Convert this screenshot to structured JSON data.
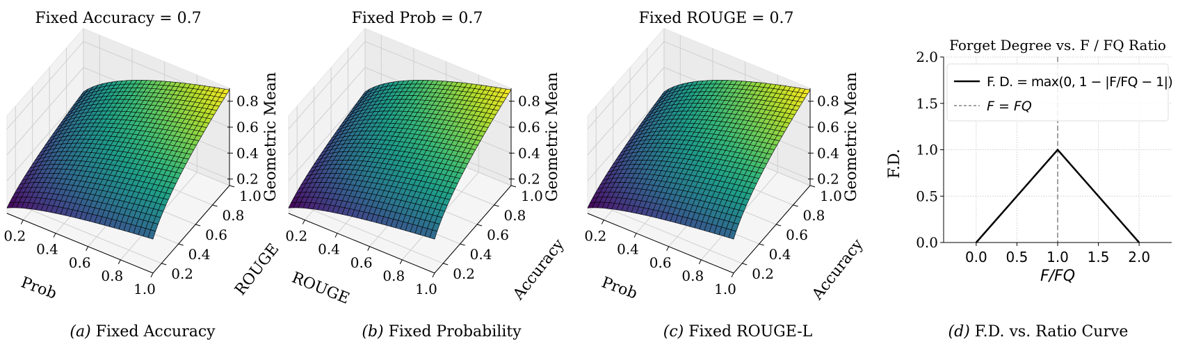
{
  "chart_data": [
    {
      "type": "surface",
      "title": "Fixed Accuracy = 0.7",
      "fixed_value": 0.7,
      "caption_prefix": "(a)",
      "caption": "Fixed Accuracy",
      "xlabel": "Prob",
      "ylabel": "ROUGE",
      "zlabel": "Geometric Mean",
      "xlim": [
        0.1,
        1.0
      ],
      "ylim": [
        0.1,
        1.0
      ],
      "zlim": [
        0.15,
        0.9
      ],
      "xticks": [
        "0.2",
        "0.4",
        "0.6",
        "0.8",
        "1.0"
      ],
      "yticks": [
        "0.2",
        "0.4",
        "0.6",
        "0.8",
        "1.0"
      ],
      "zticks": [
        "0.2",
        "0.4",
        "0.6",
        "0.8"
      ],
      "colormap": "viridis"
    },
    {
      "type": "surface",
      "title": "Fixed Prob = 0.7",
      "fixed_value": 0.7,
      "caption_prefix": "(b)",
      "caption": "Fixed Probability",
      "xlabel": "ROUGE",
      "ylabel": "Accuracy",
      "zlabel": "Geometric Mean",
      "xlim": [
        0.1,
        1.0
      ],
      "ylim": [
        0.1,
        1.0
      ],
      "zlim": [
        0.15,
        0.9
      ],
      "xticks": [
        "0.2",
        "0.4",
        "0.6",
        "0.8",
        "1.0"
      ],
      "yticks": [
        "0.2",
        "0.4",
        "0.6",
        "0.8",
        "1.0"
      ],
      "zticks": [
        "0.2",
        "0.4",
        "0.6",
        "0.8"
      ],
      "colormap": "viridis"
    },
    {
      "type": "surface",
      "title": "Fixed ROUGE = 0.7",
      "fixed_value": 0.7,
      "caption_prefix": "(c)",
      "caption": "Fixed ROUGE-L",
      "xlabel": "Prob",
      "ylabel": "Accuracy",
      "zlabel": "Geometric Mean",
      "xlim": [
        0.1,
        1.0
      ],
      "ylim": [
        0.1,
        1.0
      ],
      "zlim": [
        0.15,
        0.9
      ],
      "xticks": [
        "0.2",
        "0.4",
        "0.6",
        "0.8",
        "1.0"
      ],
      "yticks": [
        "0.2",
        "0.4",
        "0.6",
        "0.8",
        "1.0"
      ],
      "zticks": [
        "0.2",
        "0.4",
        "0.6",
        "0.8"
      ],
      "colormap": "viridis"
    },
    {
      "type": "line",
      "title": "Forget Degree vs. F / FQ Ratio",
      "caption_prefix": "(d)",
      "caption": "F.D. vs. Ratio Curve",
      "xlabel": "F/FQ",
      "ylabel": "F.D.",
      "xlim": [
        -0.4,
        2.4
      ],
      "ylim": [
        0,
        2.0
      ],
      "xticks": [
        "0.0",
        "0.5",
        "1.0",
        "1.5",
        "2.0"
      ],
      "yticks": [
        "0.0",
        "0.5",
        "1.0",
        "1.5",
        "2.0"
      ],
      "grid": true,
      "legend_position": "top",
      "series": [
        {
          "name": "F. D. = max(0, 1 − |F/FQ − 1|)",
          "x": [
            0,
            1,
            2
          ],
          "y": [
            0,
            1,
            0
          ],
          "color": "#000000",
          "style": "solid"
        }
      ],
      "vlines": [
        {
          "name": "F = FQ",
          "x": 1.0,
          "color": "#808080",
          "style": "dashed"
        }
      ]
    }
  ]
}
